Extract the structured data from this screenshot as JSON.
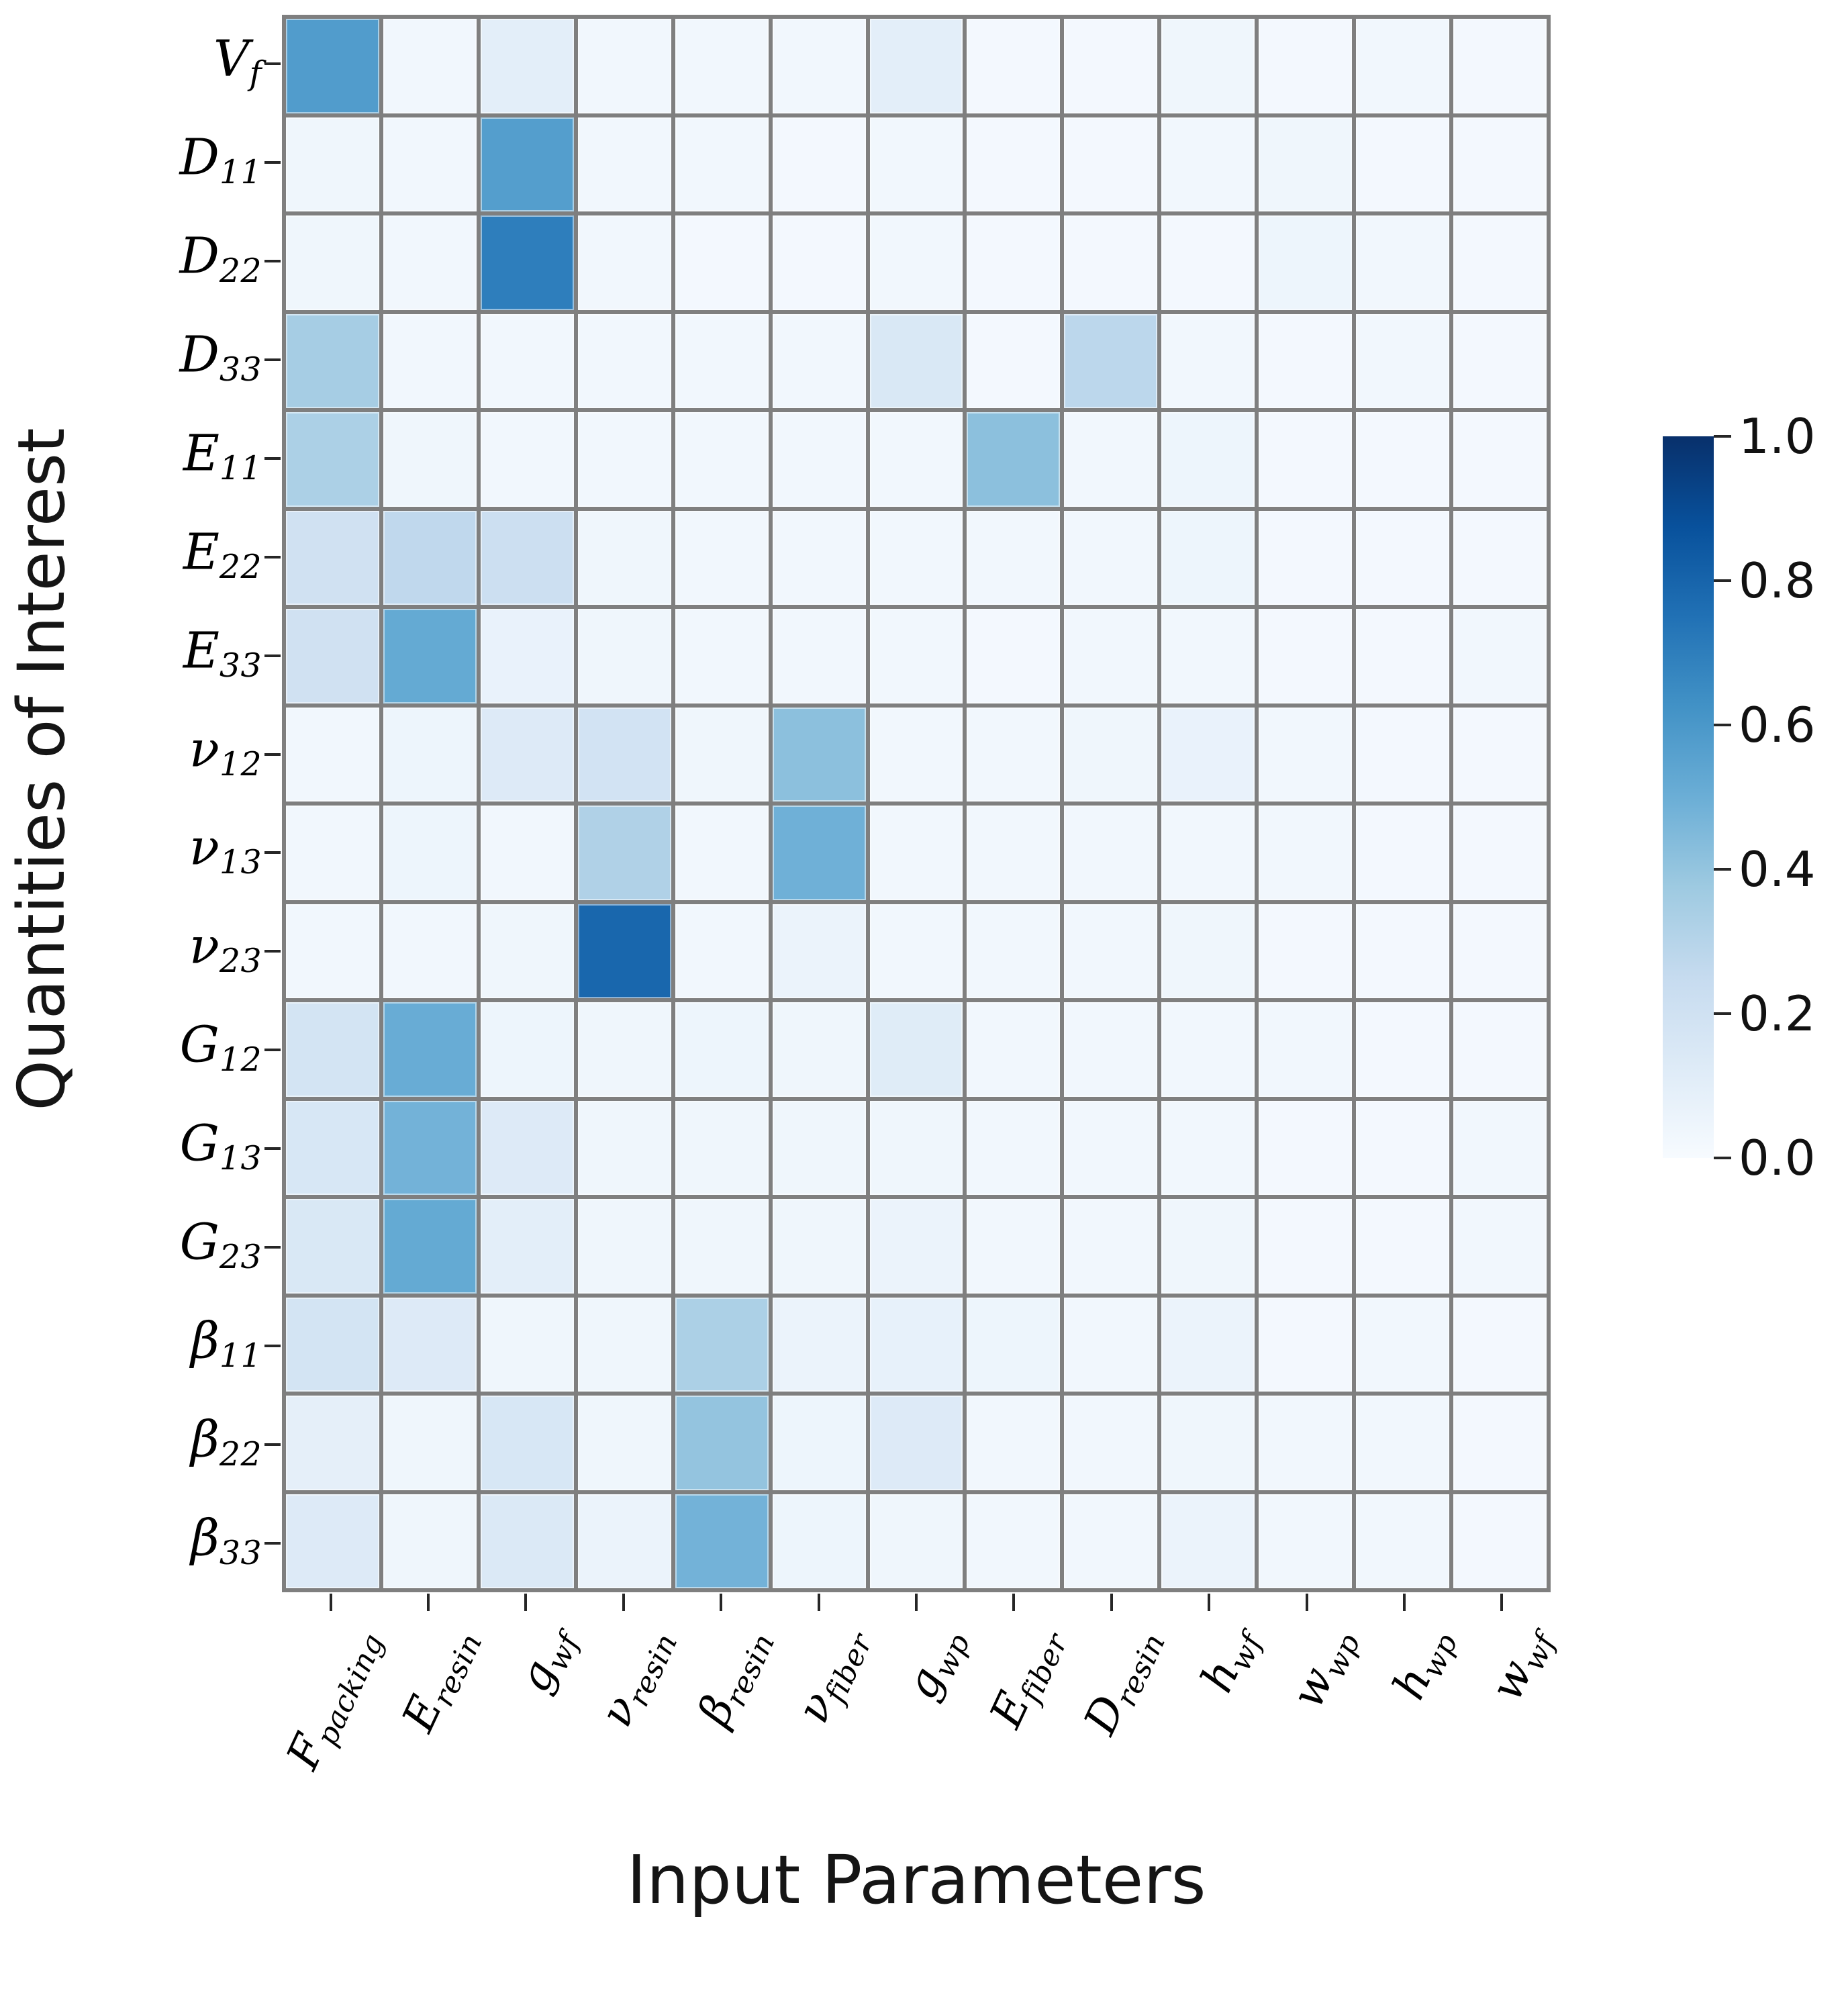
{
  "figure": {
    "ylabel": "Quantities of Interest",
    "xlabel": "Input Parameters"
  },
  "chart_data": {
    "type": "heatmap",
    "colormap": "Blues",
    "value_range": [
      0.0,
      1.0
    ],
    "grid_line_color": "#7f7f7f",
    "rows": [
      {
        "b": "V",
        "s": "f"
      },
      {
        "b": "D",
        "s": "11"
      },
      {
        "b": "D",
        "s": "22"
      },
      {
        "b": "D",
        "s": "33"
      },
      {
        "b": "E",
        "s": "11"
      },
      {
        "b": "E",
        "s": "22"
      },
      {
        "b": "E",
        "s": "33"
      },
      {
        "b": "ν",
        "s": "12"
      },
      {
        "b": "ν",
        "s": "13"
      },
      {
        "b": "ν",
        "s": "23"
      },
      {
        "b": "G",
        "s": "12"
      },
      {
        "b": "G",
        "s": "13"
      },
      {
        "b": "G",
        "s": "23"
      },
      {
        "b": "β",
        "s": "11"
      },
      {
        "b": "β",
        "s": "22"
      },
      {
        "b": "β",
        "s": "33"
      }
    ],
    "columns": [
      {
        "b": "F",
        "s": "packing"
      },
      {
        "b": "E",
        "s": "resin"
      },
      {
        "b": "g",
        "s": "wf"
      },
      {
        "b": "ν",
        "s": "resin"
      },
      {
        "b": "β",
        "s": "resin"
      },
      {
        "b": "ν",
        "s": "fiber"
      },
      {
        "b": "g",
        "s": "wp"
      },
      {
        "b": "E",
        "s": "fiber"
      },
      {
        "b": "D",
        "s": "resin"
      },
      {
        "b": "h",
        "s": "wf"
      },
      {
        "b": "w",
        "s": "wp"
      },
      {
        "b": "h",
        "s": "wp"
      },
      {
        "b": "w",
        "s": "wf"
      }
    ],
    "values": [
      [
        0.58,
        0.03,
        0.1,
        0.03,
        0.03,
        0.03,
        0.1,
        0.02,
        0.02,
        0.04,
        0.02,
        0.03,
        0.02
      ],
      [
        0.04,
        0.03,
        0.57,
        0.03,
        0.03,
        0.02,
        0.03,
        0.02,
        0.02,
        0.03,
        0.04,
        0.02,
        0.02
      ],
      [
        0.04,
        0.03,
        0.7,
        0.03,
        0.02,
        0.02,
        0.03,
        0.02,
        0.02,
        0.02,
        0.05,
        0.03,
        0.02
      ],
      [
        0.35,
        0.03,
        0.03,
        0.03,
        0.03,
        0.03,
        0.15,
        0.02,
        0.28,
        0.03,
        0.02,
        0.03,
        0.02
      ],
      [
        0.33,
        0.04,
        0.03,
        0.03,
        0.03,
        0.03,
        0.03,
        0.42,
        0.03,
        0.05,
        0.02,
        0.02,
        0.02
      ],
      [
        0.2,
        0.27,
        0.22,
        0.04,
        0.03,
        0.03,
        0.03,
        0.03,
        0.03,
        0.05,
        0.02,
        0.02,
        0.02
      ],
      [
        0.2,
        0.52,
        0.07,
        0.04,
        0.03,
        0.03,
        0.03,
        0.02,
        0.03,
        0.03,
        0.02,
        0.02,
        0.03
      ],
      [
        0.03,
        0.05,
        0.13,
        0.19,
        0.04,
        0.42,
        0.03,
        0.03,
        0.04,
        0.07,
        0.03,
        0.02,
        0.02
      ],
      [
        0.03,
        0.05,
        0.03,
        0.32,
        0.03,
        0.49,
        0.03,
        0.03,
        0.03,
        0.03,
        0.03,
        0.02,
        0.02
      ],
      [
        0.03,
        0.03,
        0.04,
        0.79,
        0.03,
        0.06,
        0.03,
        0.03,
        0.03,
        0.04,
        0.02,
        0.02,
        0.02
      ],
      [
        0.18,
        0.51,
        0.05,
        0.04,
        0.05,
        0.04,
        0.12,
        0.03,
        0.03,
        0.03,
        0.03,
        0.02,
        0.02
      ],
      [
        0.16,
        0.48,
        0.13,
        0.04,
        0.04,
        0.04,
        0.04,
        0.03,
        0.03,
        0.03,
        0.02,
        0.02,
        0.03
      ],
      [
        0.15,
        0.52,
        0.1,
        0.04,
        0.04,
        0.04,
        0.06,
        0.03,
        0.03,
        0.04,
        0.02,
        0.02,
        0.03
      ],
      [
        0.18,
        0.13,
        0.04,
        0.04,
        0.33,
        0.06,
        0.08,
        0.05,
        0.03,
        0.06,
        0.02,
        0.03,
        0.02
      ],
      [
        0.09,
        0.04,
        0.16,
        0.04,
        0.4,
        0.05,
        0.13,
        0.03,
        0.03,
        0.04,
        0.03,
        0.03,
        0.02
      ],
      [
        0.13,
        0.04,
        0.14,
        0.06,
        0.48,
        0.05,
        0.04,
        0.03,
        0.03,
        0.06,
        0.03,
        0.03,
        0.02
      ]
    ],
    "colorbar": {
      "ticks": [
        1.0,
        0.8,
        0.6,
        0.4,
        0.2,
        0.0
      ],
      "low_color": "#f7fbff",
      "high_color": "#08306b",
      "position": "right"
    },
    "legend": "none",
    "title": ""
  }
}
